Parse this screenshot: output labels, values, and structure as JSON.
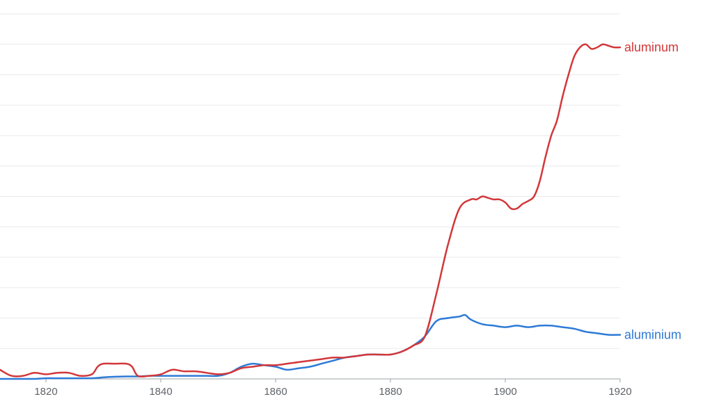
{
  "chart_data": {
    "type": "line",
    "title": "",
    "xlabel": "",
    "ylabel": "",
    "xlim": [
      1812,
      1920
    ],
    "ylim": [
      0,
      12
    ],
    "x_ticks": [
      1820,
      1840,
      1860,
      1880,
      1900,
      1920
    ],
    "x_tick_labels": [
      "1820",
      "1840",
      "1860",
      "1880",
      "1900",
      "1920"
    ],
    "y_gridlines": [
      1,
      2,
      3,
      4,
      5,
      6,
      7,
      8,
      9,
      10,
      11,
      12
    ],
    "grid": true,
    "series": [
      {
        "name": "aluminum",
        "color": "#d2373a",
        "x": [
          1812,
          1814,
          1816,
          1818,
          1820,
          1822,
          1824,
          1826,
          1828,
          1829,
          1830,
          1832,
          1834,
          1835,
          1836,
          1838,
          1840,
          1842,
          1844,
          1846,
          1848,
          1850,
          1852,
          1854,
          1856,
          1858,
          1860,
          1862,
          1864,
          1866,
          1868,
          1870,
          1872,
          1874,
          1876,
          1878,
          1880,
          1882,
          1884,
          1886,
          1888,
          1890,
          1892,
          1894,
          1895,
          1896,
          1897,
          1898,
          1899,
          1900,
          1901,
          1902,
          1903,
          1904,
          1905,
          1906,
          1907,
          1908,
          1909,
          1910,
          1911,
          1912,
          1913,
          1914,
          1915,
          1916,
          1917,
          1918,
          1919,
          1920
        ],
        "values": [
          0.3,
          0.1,
          0.1,
          0.2,
          0.15,
          0.2,
          0.2,
          0.1,
          0.15,
          0.4,
          0.5,
          0.5,
          0.5,
          0.4,
          0.1,
          0.1,
          0.15,
          0.3,
          0.25,
          0.25,
          0.2,
          0.15,
          0.2,
          0.35,
          0.4,
          0.45,
          0.45,
          0.5,
          0.55,
          0.6,
          0.65,
          0.7,
          0.7,
          0.75,
          0.8,
          0.8,
          0.8,
          0.9,
          1.1,
          1.4,
          2.8,
          4.4,
          5.6,
          5.9,
          5.9,
          6.0,
          5.95,
          5.9,
          5.9,
          5.8,
          5.6,
          5.6,
          5.75,
          5.85,
          6.0,
          6.5,
          7.3,
          8.0,
          8.5,
          9.3,
          10.0,
          10.6,
          10.9,
          11.0,
          10.85,
          10.9,
          11.0,
          10.95,
          10.9,
          10.9
        ]
      },
      {
        "name": "aluminium",
        "color": "#2d7ad6",
        "x": [
          1812,
          1814,
          1816,
          1818,
          1820,
          1822,
          1824,
          1826,
          1828,
          1830,
          1832,
          1834,
          1836,
          1838,
          1840,
          1842,
          1844,
          1846,
          1848,
          1850,
          1852,
          1854,
          1856,
          1858,
          1860,
          1862,
          1864,
          1866,
          1868,
          1870,
          1872,
          1874,
          1876,
          1878,
          1880,
          1882,
          1884,
          1886,
          1888,
          1890,
          1892,
          1893,
          1894,
          1896,
          1898,
          1900,
          1902,
          1904,
          1906,
          1908,
          1910,
          1912,
          1914,
          1916,
          1918,
          1920
        ],
        "values": [
          0.0,
          0.0,
          0.0,
          0.0,
          0.02,
          0.02,
          0.02,
          0.02,
          0.02,
          0.05,
          0.07,
          0.08,
          0.08,
          0.1,
          0.1,
          0.1,
          0.1,
          0.1,
          0.1,
          0.1,
          0.2,
          0.4,
          0.5,
          0.45,
          0.4,
          0.3,
          0.35,
          0.4,
          0.5,
          0.6,
          0.7,
          0.75,
          0.8,
          0.8,
          0.8,
          0.9,
          1.1,
          1.4,
          1.9,
          2.0,
          2.05,
          2.1,
          1.95,
          1.8,
          1.75,
          1.7,
          1.75,
          1.7,
          1.75,
          1.75,
          1.7,
          1.65,
          1.55,
          1.5,
          1.45,
          1.45
        ]
      }
    ]
  }
}
